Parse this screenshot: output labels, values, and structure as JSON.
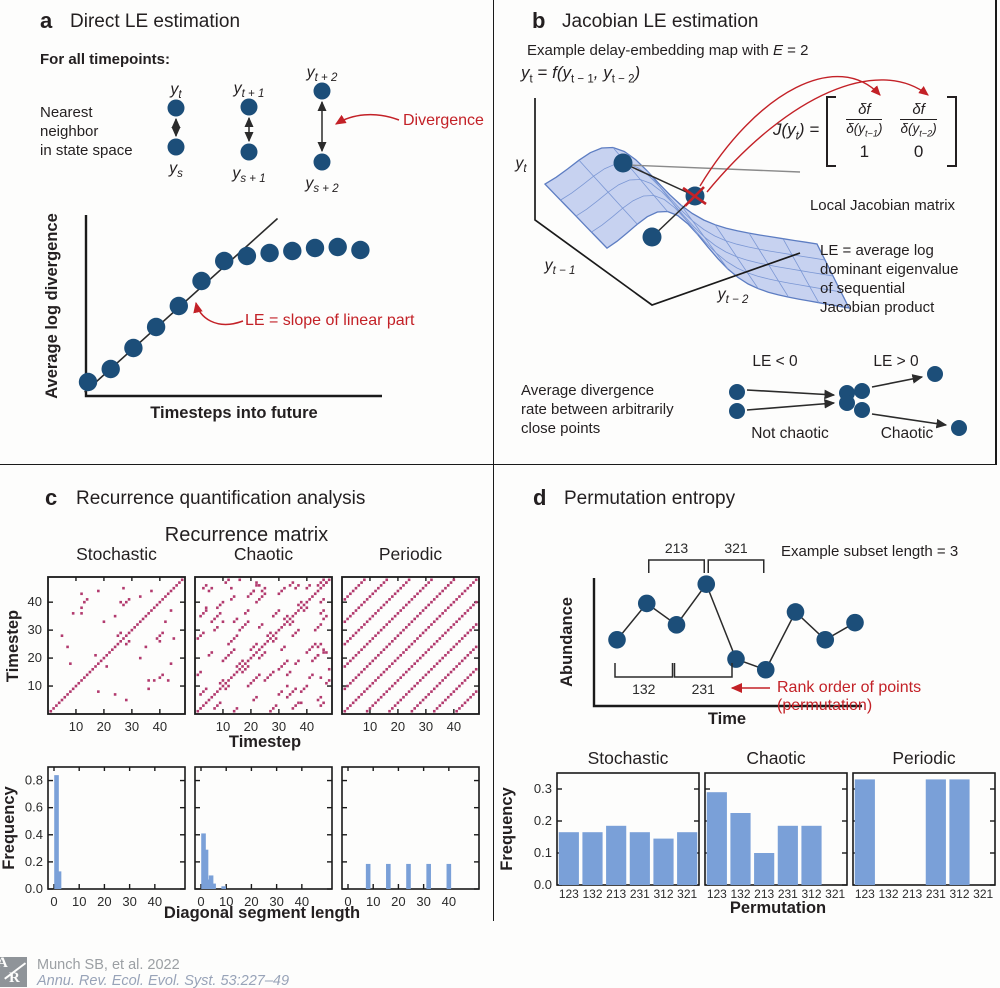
{
  "colors": {
    "navy": "#1c4e79",
    "red": "#c32127",
    "magenta": "#b23a6e",
    "bar_blue": "#7aa0d8",
    "surface_fill": "#b9c7ec",
    "surface_grid": "#7b97d4",
    "surface_edge": "#5d7dc2",
    "axis_black": "#1a1a1a",
    "footer_gray": "#9b9fa3",
    "footer_blue": "#98a3b8"
  },
  "panel_a": {
    "label": "a",
    "title": "Direct LE estimation",
    "for_all": "For all timepoints:",
    "neighbor_text": "Nearest\nneighbor\nin state space",
    "pairs": [
      {
        "top": {
          "b": "y",
          "s": "t"
        },
        "bottom": {
          "b": "y",
          "s": "s"
        }
      },
      {
        "top": {
          "b": "y",
          "s": "t + 1"
        },
        "bottom": {
          "b": "y",
          "s": "s + 1"
        }
      },
      {
        "top": {
          "b": "y",
          "s": "t + 2"
        },
        "bottom": {
          "b": "y",
          "s": "s + 2"
        }
      }
    ],
    "divergence_label": "Divergence"
  },
  "panel_b": {
    "label": "b",
    "title": "Jacobian LE estimation",
    "subtitle_pre": "Example delay-embedding map with ",
    "subtitle_var": "E",
    "subtitle_post": " = 2",
    "formula": {
      "fa": "y",
      "fs1": "t",
      "fb": " = ",
      "fc": "f",
      "fd": "(y",
      "fs2": "t − 1",
      "fe": ", y",
      "fs3": "t − 2",
      "ff": ")"
    },
    "axes": {
      "z": {
        "b": "y",
        "s": "t"
      },
      "x": {
        "b": "y",
        "s": "t − 1"
      },
      "y": {
        "b": "y",
        "s": "t − 2"
      }
    },
    "jacobian": {
      "lhs_a": "J(y",
      "lhs_sub": "t",
      "lhs_b": ") =",
      "num": "δf",
      "den1_a": "δ(y",
      "den1_sub": "t−1",
      "den1_b": ")",
      "den2_a": "δ(y",
      "den2_sub": "t−2",
      "den2_b": ")",
      "r2c1": "1",
      "r2c2": "0",
      "caption": "Local Jacobian matrix"
    },
    "le_text": "LE = average log\ndominant eigenvalue\nof sequential\nJacobian product",
    "avg_div_text": "Average divergence\nrate between arbitrarily\nclose points",
    "not_chaotic": {
      "title": "LE < 0",
      "label": "Not chaotic"
    },
    "chaotic": {
      "title": "LE > 0",
      "label": "Chaotic"
    }
  },
  "panel_c": {
    "label": "c",
    "title": "Recurrence quantification analysis",
    "matrix_title": "Recurrence matrix"
  },
  "panel_d": {
    "label": "d",
    "title": "Permutation entropy",
    "subset_note": "Example subset length = 3"
  },
  "footer": {
    "logo_top": "A",
    "logo_bottom": "R",
    "line1": "Munch SB, et al. 2022",
    "line2": "Annu. Rev. Ecol. Evol. Syst. 53:227–49"
  },
  "chart_data": [
    {
      "id": "divergence_curve",
      "type": "scatter",
      "xlabel": "Timesteps into future",
      "ylabel": "Average log divergence",
      "annotation": "LE = slope of linear part",
      "x": [
        0,
        1,
        2,
        3,
        4,
        5,
        6,
        7,
        8,
        9,
        10,
        11,
        12
      ],
      "y": [
        0.56,
        1.08,
        1.92,
        2.76,
        3.6,
        4.6,
        5.4,
        5.6,
        5.72,
        5.8,
        5.92,
        5.96,
        5.84
      ],
      "fit_line": {
        "x1": -0.15,
        "y1": 0.15,
        "x2": 8.35,
        "y2": 7.1
      }
    },
    {
      "id": "recurrence_stochastic",
      "type": "scatter",
      "title": "Stochastic",
      "size": 48,
      "diagonal": true,
      "mirrored_points": [
        [
          8,
          18
        ],
        [
          12,
          38
        ],
        [
          13,
          40
        ],
        [
          14,
          41
        ],
        [
          12,
          43
        ],
        [
          18,
          44
        ],
        [
          24,
          35
        ],
        [
          25,
          28
        ],
        [
          26,
          40
        ],
        [
          27,
          39
        ],
        [
          28,
          40
        ],
        [
          5,
          28
        ],
        [
          9,
          36
        ],
        [
          12,
          36
        ],
        [
          27,
          45
        ],
        [
          37,
          44
        ],
        [
          29,
          41
        ],
        [
          26,
          29
        ],
        [
          17,
          21
        ],
        [
          33,
          42
        ],
        [
          20,
          33
        ],
        [
          7,
          24
        ]
      ],
      "xticks": [
        10,
        20,
        30,
        40
      ],
      "yticks": [
        10,
        20,
        30,
        40
      ],
      "xlabel": "Timestep",
      "ylabel": "Timestep"
    },
    {
      "id": "recurrence_chaotic",
      "type": "scatter",
      "title": "Chaotic",
      "size": 48,
      "diagonal": true,
      "mirrored_segments": [
        [
          2,
          7,
          3
        ],
        [
          1,
          14,
          2
        ],
        [
          5,
          21,
          2
        ],
        [
          1,
          27,
          3
        ],
        [
          6,
          33,
          4
        ],
        [
          9,
          11,
          2
        ],
        [
          8,
          38,
          3
        ],
        [
          12,
          25,
          4
        ],
        [
          13,
          41,
          2
        ],
        [
          15,
          17,
          3
        ],
        [
          16,
          30,
          4
        ],
        [
          18,
          36,
          2
        ],
        [
          20,
          23,
          3
        ],
        [
          22,
          40,
          4
        ],
        [
          24,
          44,
          2
        ],
        [
          26,
          28,
          2
        ],
        [
          28,
          35,
          3
        ],
        [
          30,
          43,
          3
        ],
        [
          32,
          34,
          2
        ],
        [
          34,
          46,
          2
        ],
        [
          37,
          39,
          2
        ],
        [
          40,
          45,
          2
        ],
        [
          3,
          45,
          2
        ],
        [
          10,
          19,
          5
        ],
        [
          5,
          44,
          2
        ],
        [
          2,
          35,
          3
        ],
        [
          7,
          30,
          2
        ],
        [
          11,
          47,
          2
        ],
        [
          14,
          33,
          2
        ],
        [
          19,
          42,
          3
        ],
        [
          23,
          31,
          2
        ],
        [
          36,
          45,
          2
        ]
      ],
      "points": [
        [
          45,
          47
        ],
        [
          46,
          48
        ],
        [
          44,
          46
        ],
        [
          47,
          47
        ],
        [
          46,
          22
        ],
        [
          47,
          22
        ],
        [
          46,
          23
        ],
        [
          22,
          46
        ],
        [
          23,
          46
        ],
        [
          22,
          47
        ],
        [
          13,
          45
        ],
        [
          45,
          13
        ],
        [
          21,
          44
        ],
        [
          44,
          21
        ],
        [
          16,
          48
        ],
        [
          48,
          16
        ],
        [
          10,
          33
        ],
        [
          33,
          10
        ],
        [
          4,
          38
        ],
        [
          38,
          4
        ]
      ],
      "xticks": [
        10,
        20,
        30,
        40
      ],
      "yticks": [
        10,
        20,
        30,
        40
      ]
    },
    {
      "id": "recurrence_periodic",
      "type": "scatter",
      "title": "Periodic",
      "size": 48,
      "diagonal": true,
      "period": 8,
      "offsets": [
        8,
        16,
        24,
        32,
        40
      ],
      "xticks": [
        10,
        20,
        30,
        40
      ],
      "yticks": [
        10,
        20,
        30,
        40
      ]
    },
    {
      "id": "diag_hist_stochastic",
      "type": "bar",
      "x": [
        1,
        2
      ],
      "values": [
        0.84,
        0.13
      ],
      "xticks": [
        0,
        10,
        20,
        30,
        40
      ],
      "yticks": [
        0.0,
        0.2,
        0.4,
        0.6,
        0.8
      ],
      "ylim": [
        0,
        0.9
      ],
      "xlim": [
        0,
        49
      ],
      "xlabel": "Diagonal segment length",
      "ylabel": "Frequency"
    },
    {
      "id": "diag_hist_chaotic",
      "type": "bar",
      "x": [
        1,
        2,
        3,
        4,
        5,
        9
      ],
      "values": [
        0.41,
        0.29,
        0.07,
        0.1,
        0.04,
        0.02
      ],
      "xticks": [
        0,
        10,
        20,
        30,
        40
      ]
    },
    {
      "id": "diag_hist_periodic",
      "type": "bar",
      "x": [
        8,
        16,
        24,
        32,
        40
      ],
      "values": [
        0.185,
        0.185,
        0.185,
        0.185,
        0.185
      ],
      "xticks": [
        0,
        10,
        20,
        30,
        40
      ]
    },
    {
      "id": "permutation_series",
      "type": "line",
      "xlabel": "Time",
      "ylabel": "Abundance",
      "values": [
        3.0,
        4.7,
        3.7,
        5.6,
        2.1,
        1.6,
        4.3,
        3.0,
        3.8
      ],
      "brackets_top": [
        {
          "label": "213",
          "from": 2,
          "to": 4
        },
        {
          "label": "321",
          "from": 4,
          "to": 6
        }
      ],
      "brackets_bottom": [
        {
          "label": "132",
          "from": 1,
          "to": 3
        },
        {
          "label": "231",
          "from": 3,
          "to": 5
        }
      ],
      "annotation": "Rank order of points (permutation)"
    },
    {
      "id": "perm_hist_stochastic",
      "type": "bar",
      "title": "Stochastic",
      "categories": [
        "123",
        "132",
        "213",
        "231",
        "312",
        "321"
      ],
      "values": [
        0.165,
        0.165,
        0.185,
        0.165,
        0.145,
        0.165
      ],
      "yticks": [
        0.0,
        0.1,
        0.2,
        0.3
      ],
      "ylim": [
        0,
        0.35
      ],
      "xlabel": "Permutation",
      "ylabel": "Frequency"
    },
    {
      "id": "perm_hist_chaotic",
      "type": "bar",
      "title": "Chaotic",
      "categories": [
        "123",
        "132",
        "213",
        "231",
        "312",
        "321"
      ],
      "values": [
        0.29,
        0.225,
        0.1,
        0.185,
        0.185,
        0
      ]
    },
    {
      "id": "perm_hist_periodic",
      "type": "bar",
      "title": "Periodic",
      "categories": [
        "123",
        "132",
        "213",
        "231",
        "312",
        "321"
      ],
      "values": [
        0.33,
        0,
        0,
        0.33,
        0.33,
        0
      ]
    }
  ]
}
